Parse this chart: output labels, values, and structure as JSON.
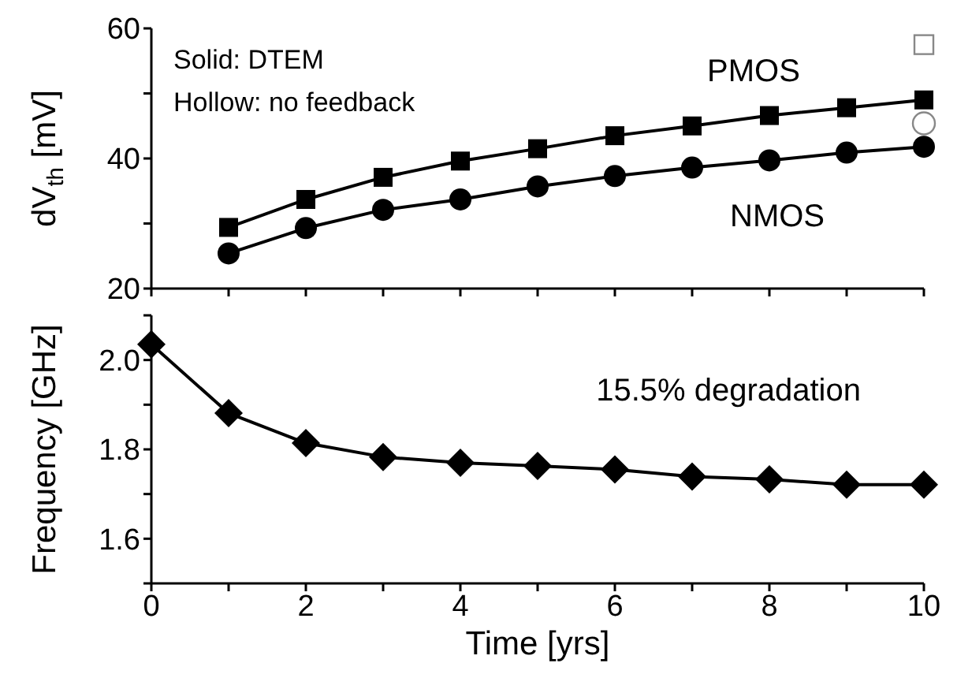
{
  "chart_data": [
    {
      "type": "line",
      "ylabel": "dV$_{th}$ [mV]",
      "xlim": [
        0,
        10
      ],
      "xticks": [
        0,
        {
          "value": 1,
          "label": null
        },
        2,
        {
          "value": 3,
          "label": null
        },
        4,
        {
          "value": 5,
          "label": null
        },
        6,
        {
          "value": 7,
          "label": null
        },
        8,
        {
          "value": 9,
          "label": null
        },
        10
      ],
      "ylim": [
        20,
        60
      ],
      "yticks": [
        20,
        {
          "value": 30,
          "label": null
        },
        40,
        {
          "value": 50,
          "label": null
        },
        60
      ],
      "tick_labels": "y",
      "line_style": "solid",
      "annotations": [
        "Solid: DTEM",
        "Hollow: no feedback"
      ],
      "series": [
        {
          "name": "PMOS",
          "color": "#000000",
          "marker": "square",
          "x": [
            1,
            2,
            3,
            4,
            5,
            6,
            7,
            8,
            9,
            10
          ],
          "values": [
            29.4,
            33.7,
            37.1,
            39.6,
            41.5,
            43.5,
            45.0,
            46.6,
            47.8,
            49.0
          ]
        },
        {
          "name": "NMOS",
          "color": "#000000",
          "marker": "circle",
          "x": [
            1,
            2,
            3,
            4,
            5,
            6,
            7,
            8,
            9,
            10
          ],
          "values": [
            25.4,
            29.3,
            32.1,
            33.7,
            35.7,
            37.3,
            38.6,
            39.7,
            40.9,
            41.8
          ]
        },
        {
          "type": "scatter",
          "color": "#888888",
          "marker": "square",
          "x": [
            10
          ],
          "values": [
            57.5
          ]
        },
        {
          "type": "scatter",
          "color": "#888888",
          "marker": "circle",
          "x": [
            10
          ],
          "values": [
            45.4
          ]
        }
      ]
    },
    {
      "type": "line",
      "xlabel": "Time [yrs]",
      "ylabel": "Frequency [GHz]",
      "xlim": [
        0,
        10
      ],
      "xticks": [
        0,
        {
          "value": 1,
          "label": null
        },
        2,
        {
          "value": 3,
          "label": null
        },
        4,
        {
          "value": 5,
          "label": null
        },
        6,
        {
          "value": 7,
          "label": null
        },
        8,
        {
          "value": 9,
          "label": null
        },
        10
      ],
      "ylim": [
        1.5,
        2.1
      ],
      "yticks": [
        {
          "value": 1.5,
          "label": null
        },
        1.6,
        {
          "value": 1.7,
          "label": null
        },
        1.8,
        {
          "value": 1.9,
          "label": null
        },
        {
          "value": 2.0,
          "label": "2.0"
        },
        {
          "value": 2.1,
          "label": null
        }
      ],
      "marker": "diamond",
      "line_style": "solid",
      "annotations": [
        "15.5% degradation"
      ],
      "series": [
        {
          "color": "#000000",
          "x": [
            0,
            1,
            2,
            3,
            4,
            5,
            6,
            7,
            8,
            9,
            10
          ],
          "values": [
            2.035,
            1.881,
            1.814,
            1.783,
            1.77,
            1.763,
            1.755,
            1.739,
            1.733,
            1.721,
            1.721
          ]
        }
      ]
    }
  ]
}
